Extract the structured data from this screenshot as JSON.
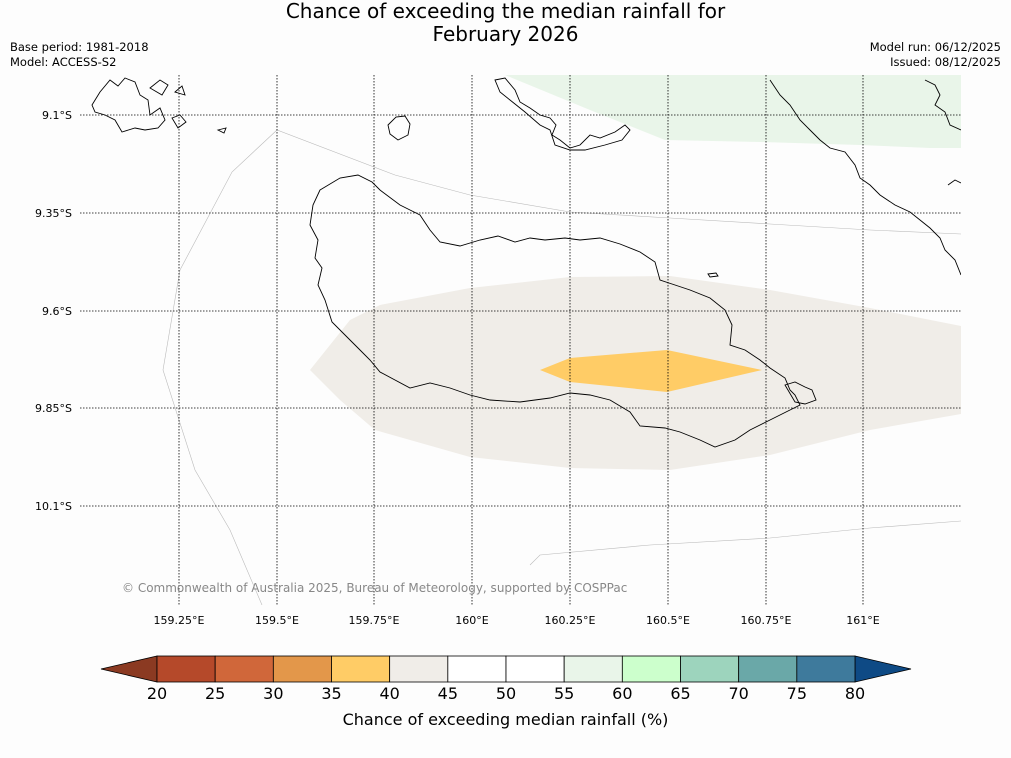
{
  "title_line1": "Chance of exceeding the median rainfall for",
  "title_line2": "February 2026",
  "base_period": "Base period: 1981-2018",
  "model": "Model: ACCESS-S2",
  "model_run": "Model run: 06/12/2025",
  "issued": "Issued: 08/12/2025",
  "copyright": "© Commonwealth of Australia 2025, Bureau of Meteorology, supported by COSPPac",
  "map": {
    "lat_labels": [
      "9.1°S",
      "9.35°S",
      "9.6°S",
      "9.85°S",
      "10.1°S"
    ],
    "lon_labels": [
      "159.25°E",
      "159.5°E",
      "159.75°E",
      "160°E",
      "160.25°E",
      "160.5°E",
      "160.75°E",
      "161°E"
    ]
  },
  "colorbar": {
    "ticks": [
      "20",
      "25",
      "30",
      "35",
      "40",
      "45",
      "50",
      "55",
      "60",
      "65",
      "70",
      "75",
      "80"
    ],
    "colors": [
      "#b5492a",
      "#d0673a",
      "#e3974a",
      "#ffcc66",
      "#f0ede8",
      "#ffffff",
      "#ffffff",
      "#e9f5e9",
      "#ccffcc",
      "#9dd4bd",
      "#6aa8a8",
      "#3e7a9c"
    ],
    "low_extend_color": "#8b3a22",
    "high_extend_color": "#0e4a85",
    "label": "Chance of exceeding median rainfall (%)"
  }
}
